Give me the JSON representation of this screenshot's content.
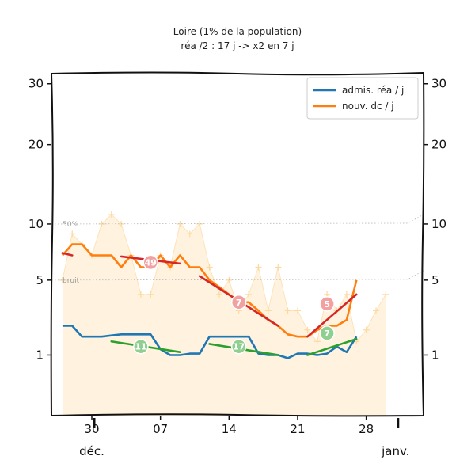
{
  "chart_data": {
    "type": "line",
    "title": "Loire (1% de la population)",
    "subtitle": "réa /2 : 17 j -> x2 en 7 j",
    "ylim": [
      0,
      32
    ],
    "y_scale": "sqrt",
    "y_ticks": [
      1,
      5,
      10,
      20,
      30
    ],
    "x_ticks": [
      {
        "day": 0,
        "label": "30"
      },
      {
        "day": 7,
        "label": "07"
      },
      {
        "day": 14,
        "label": "14"
      },
      {
        "day": 21,
        "label": "21"
      },
      {
        "day": 28,
        "label": "28"
      }
    ],
    "month_labels": [
      {
        "day": 0,
        "label": "déc."
      },
      {
        "day": 31,
        "label": "janv."
      }
    ],
    "reference_lines": [
      {
        "label": "50%",
        "value": 10
      },
      {
        "label": "bruit",
        "value": 5
      }
    ],
    "legend": {
      "position": "top-right"
    },
    "series": [
      {
        "name": "admis. réa / j",
        "color": "#1f77b4",
        "x": [
          -3,
          -2,
          -1,
          0,
          1,
          2,
          3,
          4,
          5,
          6,
          7,
          8,
          9,
          10,
          11,
          12,
          13,
          14,
          15,
          16,
          17,
          18,
          19,
          20,
          21,
          22,
          23,
          24,
          25,
          26,
          27
        ],
        "values": [
          2.2,
          2.2,
          1.7,
          1.7,
          1.7,
          1.75,
          1.8,
          1.8,
          1.8,
          1.8,
          1.2,
          1.0,
          1.0,
          1.05,
          1.05,
          1.7,
          1.7,
          1.7,
          1.7,
          1.7,
          1.05,
          1.0,
          1.0,
          0.9,
          1.05,
          1.05,
          1.0,
          1.05,
          1.3,
          1.1,
          1.7
        ]
      },
      {
        "name": "nouv. dc / j",
        "color": "#ff7f0e",
        "x": [
          -3,
          -2,
          -1,
          0,
          1,
          2,
          3,
          4,
          5,
          6,
          7,
          8,
          9,
          10,
          11,
          12,
          13,
          14,
          15,
          16,
          17,
          18,
          19,
          20,
          21,
          22,
          23,
          24,
          25,
          26,
          27
        ],
        "values": [
          7,
          8,
          8,
          7,
          7,
          7,
          6,
          7,
          6,
          6,
          7,
          6,
          7,
          6,
          6,
          5,
          4.5,
          4,
          3.5,
          3.5,
          3,
          2.5,
          2.2,
          1.8,
          1.7,
          1.7,
          2,
          2.2,
          2.2,
          2.5,
          5
        ]
      },
      {
        "name": "",
        "color": "#fdd9a0",
        "x": [
          -3,
          -2,
          -1,
          0,
          1,
          2,
          3,
          4,
          5,
          6,
          7,
          8,
          9,
          10,
          11,
          12,
          13,
          14,
          15,
          16,
          17,
          18,
          19,
          20,
          21,
          22,
          23,
          24,
          25,
          26,
          27,
          28,
          29,
          30
        ],
        "values": [
          5,
          9,
          8,
          7,
          10,
          11,
          10,
          7,
          4,
          4,
          7,
          6,
          10,
          9,
          10,
          6,
          4,
          5,
          3,
          4,
          6,
          3,
          6,
          3,
          3,
          2,
          1.5,
          4,
          3,
          4,
          1.5,
          2,
          3,
          4
        ]
      }
    ],
    "trends": [
      {
        "color": "#d62728",
        "x": [
          -3,
          -2
        ],
        "values": [
          7.2,
          7.0
        ]
      },
      {
        "color": "#d62728",
        "x": [
          3,
          9
        ],
        "values": [
          6.9,
          6.3
        ]
      },
      {
        "color": "#d62728",
        "x": [
          11,
          19
        ],
        "values": [
          5.3,
          2.2
        ]
      },
      {
        "color": "#d62728",
        "x": [
          22,
          27
        ],
        "values": [
          1.7,
          4.0
        ]
      },
      {
        "color": "#2ca02c",
        "x": [
          2,
          9
        ],
        "values": [
          1.5,
          1.1
        ]
      },
      {
        "color": "#2ca02c",
        "x": [
          12,
          19
        ],
        "values": [
          1.4,
          1.0
        ]
      },
      {
        "color": "#2ca02c",
        "x": [
          22,
          27
        ],
        "values": [
          1.0,
          1.6
        ]
      }
    ],
    "badges": [
      {
        "text": "49",
        "color": "#f2a0a0",
        "x": 6,
        "y": 6.4
      },
      {
        "text": "7",
        "color": "#f2a0a0",
        "x": 15,
        "y": 3.5
      },
      {
        "text": "5",
        "color": "#f2a0a0",
        "x": 24,
        "y": 3.4
      },
      {
        "text": "11",
        "color": "#8fcf8f",
        "x": 5,
        "y": 1.3
      },
      {
        "text": "17",
        "color": "#8fcf8f",
        "x": 15,
        "y": 1.3
      },
      {
        "text": "7",
        "color": "#8fcf8f",
        "x": 24,
        "y": 1.85
      }
    ]
  }
}
